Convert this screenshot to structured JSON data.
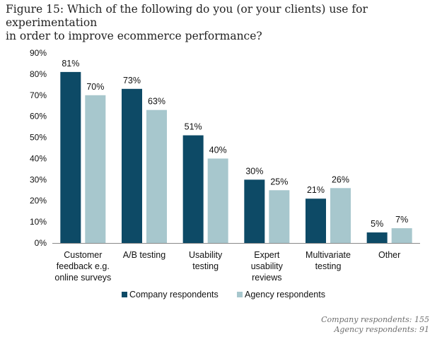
{
  "title_lines": [
    "Figure 15: Which of the following do you (or your clients) use for experimentation",
    "in order to improve ecommerce performance?"
  ],
  "colors": {
    "company": "#0d4a66",
    "agency": "#a7c7cd",
    "axis": "#888888"
  },
  "chart_data": {
    "type": "bar",
    "title": "Figure 15: Which of the following do you (or your clients) use for experimentation in order to improve ecommerce performance?",
    "categories": [
      [
        "Customer",
        "feedback e.g.",
        "online surveys"
      ],
      [
        "A/B testing"
      ],
      [
        "Usability",
        "testing"
      ],
      [
        "Expert",
        "usability",
        "reviews"
      ],
      [
        "Multivariate",
        "testing"
      ],
      [
        "Other"
      ]
    ],
    "series": [
      {
        "name": "Company respondents",
        "values": [
          81,
          73,
          51,
          30,
          21,
          5
        ],
        "labels": [
          "81%",
          "73%",
          "51%",
          "30%",
          "21%",
          "5%"
        ]
      },
      {
        "name": "Agency respondents",
        "values": [
          70,
          63,
          40,
          25,
          26,
          7
        ],
        "labels": [
          "70%",
          "63%",
          "40%",
          "25%",
          "26%",
          "7%"
        ]
      }
    ],
    "ylim": [
      0,
      90
    ],
    "yticks": [
      "0%",
      "10%",
      "20%",
      "30%",
      "40%",
      "50%",
      "60%",
      "70%",
      "80%",
      "90%"
    ],
    "xlabel": "",
    "ylabel": "",
    "grid": false,
    "legend_position": "bottom"
  },
  "notes": [
    "Company respondents: 155",
    "Agency respondents: 91"
  ]
}
